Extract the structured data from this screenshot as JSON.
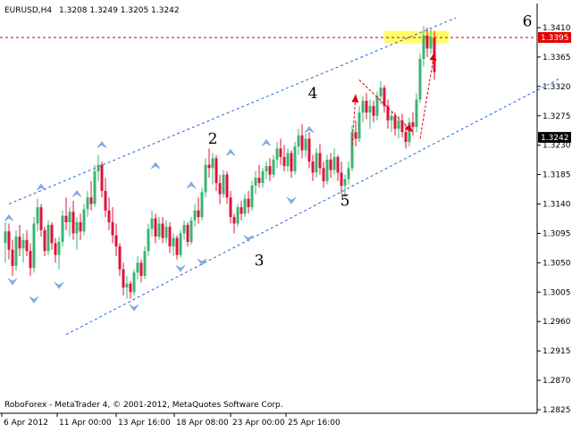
{
  "header": {
    "symbol_timeframe": "EURUSD,H4",
    "ohlc": "1.3208 1.3249 1.3205 1.3242"
  },
  "footer": {
    "copyright": "RoboForex - MetaTrader 4, © 2001-2012, MetaQuotes Software Corp."
  },
  "colors": {
    "background": "#ffffff",
    "bull_candle": "#3cb371",
    "bear_candle": "#dc143c",
    "channel": "#1e64dc",
    "fractal_arrow": "#87aee6",
    "target_zone": "#ffff66",
    "signal_arrow": "#e00000",
    "resistance_line": "#cc0000",
    "price_tag_bg": "#000000",
    "price_tag_alert_bg": "#e00000"
  },
  "chart_data": {
    "type": "candlestick",
    "instrument": "EURUSD",
    "timeframe": "H4",
    "ylim": [
      1.2825,
      1.3425
    ],
    "y_ticks": [
      "1.3410",
      "1.3365",
      "1.3320",
      "1.3275",
      "1.3230",
      "1.3185",
      "1.3140",
      "1.3095",
      "1.3050",
      "1.3005",
      "1.2960",
      "1.2915",
      "1.2870",
      "1.2825"
    ],
    "x_ticks": [
      "6 Apr 2012",
      "11 Apr 00:00",
      "13 Apr 16:00",
      "18 Apr 08:00",
      "23 Apr 00:00",
      "25 Apr 16:00"
    ],
    "price_tags": [
      {
        "label": "1.3395",
        "value": 1.3395,
        "style": "alert"
      },
      {
        "label": "1.3242",
        "value": 1.3242,
        "style": "current"
      }
    ],
    "wave_labels": [
      {
        "text": "2",
        "bar": 58,
        "price": 1.3232
      },
      {
        "text": "3",
        "bar": 71,
        "price": 1.3046
      },
      {
        "text": "4",
        "bar": 86,
        "price": 1.3302
      },
      {
        "text": "5",
        "bar": 95,
        "price": 1.3137
      },
      {
        "text": "6",
        "bar": 146,
        "price": 1.3412
      }
    ],
    "target_zone": {
      "price_top": 1.3405,
      "price_bottom": 1.3386,
      "bar_start": 106,
      "bar_end": 124
    },
    "resistance_level": 1.3395,
    "channel": {
      "upper": [
        {
          "bar": 1,
          "price": 1.314
        },
        {
          "bar": 126,
          "price": 1.3425
        }
      ],
      "lower": [
        {
          "bar": 17,
          "price": 1.294
        },
        {
          "bar": 155,
          "price": 1.3332
        }
      ]
    },
    "signal_arrows": [
      {
        "from": {
          "bar": 97,
          "price": 1.323
        },
        "to": {
          "bar": 98,
          "price": 1.3308
        }
      },
      {
        "from": {
          "bar": 99,
          "price": 1.333
        },
        "to": {
          "bar": 114,
          "price": 1.325
        }
      },
      {
        "from": {
          "bar": 116,
          "price": 1.324
        },
        "to": {
          "bar": 120,
          "price": 1.3372
        }
      }
    ],
    "fractals_up": [
      {
        "bar": 1,
        "price": 1.311
      },
      {
        "bar": 10,
        "price": 1.3157
      },
      {
        "bar": 20,
        "price": 1.3147
      },
      {
        "bar": 27,
        "price": 1.3222
      },
      {
        "bar": 42,
        "price": 1.319
      },
      {
        "bar": 52,
        "price": 1.316
      },
      {
        "bar": 63,
        "price": 1.321
      },
      {
        "bar": 73,
        "price": 1.3225
      },
      {
        "bar": 85,
        "price": 1.3245
      }
    ],
    "fractals_down": [
      {
        "bar": 2,
        "price": 1.303
      },
      {
        "bar": 8,
        "price": 1.3002
      },
      {
        "bar": 15,
        "price": 1.3024
      },
      {
        "bar": 36,
        "price": 1.299
      },
      {
        "bar": 49,
        "price": 1.305
      },
      {
        "bar": 55,
        "price": 1.306
      },
      {
        "bar": 68,
        "price": 1.3096
      },
      {
        "bar": 80,
        "price": 1.3154
      }
    ],
    "candles": [
      {
        "o": 1.308,
        "h": 1.3112,
        "l": 1.305,
        "c": 1.3098
      },
      {
        "o": 1.3098,
        "h": 1.311,
        "l": 1.3055,
        "c": 1.307
      },
      {
        "o": 1.307,
        "h": 1.3085,
        "l": 1.303,
        "c": 1.3045
      },
      {
        "o": 1.3045,
        "h": 1.31,
        "l": 1.3038,
        "c": 1.309
      },
      {
        "o": 1.309,
        "h": 1.3108,
        "l": 1.306,
        "c": 1.3072
      },
      {
        "o": 1.3072,
        "h": 1.3095,
        "l": 1.305,
        "c": 1.3085
      },
      {
        "o": 1.3085,
        "h": 1.31,
        "l": 1.306,
        "c": 1.3068
      },
      {
        "o": 1.3068,
        "h": 1.308,
        "l": 1.303,
        "c": 1.3042
      },
      {
        "o": 1.3042,
        "h": 1.312,
        "l": 1.3035,
        "c": 1.311
      },
      {
        "o": 1.311,
        "h": 1.3148,
        "l": 1.3098,
        "c": 1.3135
      },
      {
        "o": 1.3135,
        "h": 1.314,
        "l": 1.309,
        "c": 1.31
      },
      {
        "o": 1.31,
        "h": 1.3105,
        "l": 1.306,
        "c": 1.3068
      },
      {
        "o": 1.3068,
        "h": 1.3115,
        "l": 1.3062,
        "c": 1.3108
      },
      {
        "o": 1.3108,
        "h": 1.3112,
        "l": 1.307,
        "c": 1.308
      },
      {
        "o": 1.308,
        "h": 1.3088,
        "l": 1.305,
        "c": 1.3062
      },
      {
        "o": 1.3062,
        "h": 1.309,
        "l": 1.304,
        "c": 1.3082
      },
      {
        "o": 1.3082,
        "h": 1.313,
        "l": 1.3075,
        "c": 1.3122
      },
      {
        "o": 1.3122,
        "h": 1.315,
        "l": 1.31,
        "c": 1.3112
      },
      {
        "o": 1.3112,
        "h": 1.3135,
        "l": 1.309,
        "c": 1.3128
      },
      {
        "o": 1.3128,
        "h": 1.3145,
        "l": 1.3085,
        "c": 1.3095
      },
      {
        "o": 1.3095,
        "h": 1.312,
        "l": 1.307,
        "c": 1.3112
      },
      {
        "o": 1.3112,
        "h": 1.3125,
        "l": 1.3085,
        "c": 1.3098
      },
      {
        "o": 1.3098,
        "h": 1.314,
        "l": 1.3092,
        "c": 1.3132
      },
      {
        "o": 1.3132,
        "h": 1.316,
        "l": 1.312,
        "c": 1.315
      },
      {
        "o": 1.315,
        "h": 1.3175,
        "l": 1.313,
        "c": 1.314
      },
      {
        "o": 1.314,
        "h": 1.32,
        "l": 1.3135,
        "c": 1.319
      },
      {
        "o": 1.319,
        "h": 1.3215,
        "l": 1.3175,
        "c": 1.32
      },
      {
        "o": 1.32,
        "h": 1.3205,
        "l": 1.315,
        "c": 1.316
      },
      {
        "o": 1.316,
        "h": 1.318,
        "l": 1.312,
        "c": 1.313
      },
      {
        "o": 1.313,
        "h": 1.315,
        "l": 1.31,
        "c": 1.3112
      },
      {
        "o": 1.3112,
        "h": 1.3135,
        "l": 1.308,
        "c": 1.3092
      },
      {
        "o": 1.3092,
        "h": 1.311,
        "l": 1.306,
        "c": 1.3075
      },
      {
        "o": 1.3075,
        "h": 1.308,
        "l": 1.303,
        "c": 1.304
      },
      {
        "o": 1.304,
        "h": 1.305,
        "l": 1.3,
        "c": 1.3012
      },
      {
        "o": 1.3012,
        "h": 1.303,
        "l": 1.2995,
        "c": 1.3018
      },
      {
        "o": 1.3018,
        "h": 1.3022,
        "l": 1.2995,
        "c": 1.3005
      },
      {
        "o": 1.3005,
        "h": 1.304,
        "l": 1.3,
        "c": 1.3035
      },
      {
        "o": 1.3035,
        "h": 1.306,
        "l": 1.3025,
        "c": 1.305
      },
      {
        "o": 1.305,
        "h": 1.3055,
        "l": 1.302,
        "c": 1.303
      },
      {
        "o": 1.303,
        "h": 1.3075,
        "l": 1.3025,
        "c": 1.3068
      },
      {
        "o": 1.3068,
        "h": 1.311,
        "l": 1.306,
        "c": 1.3102
      },
      {
        "o": 1.3102,
        "h": 1.313,
        "l": 1.309,
        "c": 1.3118
      },
      {
        "o": 1.3118,
        "h": 1.3125,
        "l": 1.308,
        "c": 1.309
      },
      {
        "o": 1.309,
        "h": 1.312,
        "l": 1.3085,
        "c": 1.311
      },
      {
        "o": 1.311,
        "h": 1.312,
        "l": 1.308,
        "c": 1.3088
      },
      {
        "o": 1.3088,
        "h": 1.3115,
        "l": 1.308,
        "c": 1.3105
      },
      {
        "o": 1.3105,
        "h": 1.3112,
        "l": 1.3065,
        "c": 1.3075
      },
      {
        "o": 1.3075,
        "h": 1.3095,
        "l": 1.306,
        "c": 1.3088
      },
      {
        "o": 1.3088,
        "h": 1.3092,
        "l": 1.3055,
        "c": 1.3062
      },
      {
        "o": 1.3062,
        "h": 1.31,
        "l": 1.3058,
        "c": 1.3095
      },
      {
        "o": 1.3095,
        "h": 1.3115,
        "l": 1.3085,
        "c": 1.3108
      },
      {
        "o": 1.3108,
        "h": 1.3112,
        "l": 1.3075,
        "c": 1.3082
      },
      {
        "o": 1.3082,
        "h": 1.312,
        "l": 1.3078,
        "c": 1.3115
      },
      {
        "o": 1.3115,
        "h": 1.314,
        "l": 1.3105,
        "c": 1.313
      },
      {
        "o": 1.313,
        "h": 1.315,
        "l": 1.311,
        "c": 1.312
      },
      {
        "o": 1.312,
        "h": 1.3165,
        "l": 1.3115,
        "c": 1.3158
      },
      {
        "o": 1.3158,
        "h": 1.321,
        "l": 1.315,
        "c": 1.32
      },
      {
        "o": 1.32,
        "h": 1.3225,
        "l": 1.318,
        "c": 1.3195
      },
      {
        "o": 1.3195,
        "h": 1.3218,
        "l": 1.317,
        "c": 1.321
      },
      {
        "o": 1.321,
        "h": 1.3215,
        "l": 1.316,
        "c": 1.3172
      },
      {
        "o": 1.3172,
        "h": 1.3185,
        "l": 1.314,
        "c": 1.3155
      },
      {
        "o": 1.3155,
        "h": 1.3192,
        "l": 1.315,
        "c": 1.3185
      },
      {
        "o": 1.3185,
        "h": 1.319,
        "l": 1.314,
        "c": 1.315
      },
      {
        "o": 1.315,
        "h": 1.316,
        "l": 1.311,
        "c": 1.312
      },
      {
        "o": 1.312,
        "h": 1.3125,
        "l": 1.3095,
        "c": 1.311
      },
      {
        "o": 1.311,
        "h": 1.314,
        "l": 1.3105,
        "c": 1.3135
      },
      {
        "o": 1.3135,
        "h": 1.3145,
        "l": 1.3115,
        "c": 1.3125
      },
      {
        "o": 1.3125,
        "h": 1.3155,
        "l": 1.312,
        "c": 1.3148
      },
      {
        "o": 1.3148,
        "h": 1.316,
        "l": 1.3125,
        "c": 1.3135
      },
      {
        "o": 1.3135,
        "h": 1.3175,
        "l": 1.313,
        "c": 1.3168
      },
      {
        "o": 1.3168,
        "h": 1.319,
        "l": 1.3155,
        "c": 1.318
      },
      {
        "o": 1.318,
        "h": 1.32,
        "l": 1.3165,
        "c": 1.3172
      },
      {
        "o": 1.3172,
        "h": 1.3195,
        "l": 1.3165,
        "c": 1.319
      },
      {
        "o": 1.319,
        "h": 1.3205,
        "l": 1.3178,
        "c": 1.3198
      },
      {
        "o": 1.3198,
        "h": 1.321,
        "l": 1.3175,
        "c": 1.3185
      },
      {
        "o": 1.3185,
        "h": 1.3215,
        "l": 1.318,
        "c": 1.3208
      },
      {
        "o": 1.3208,
        "h": 1.3235,
        "l": 1.3195,
        "c": 1.3225
      },
      {
        "o": 1.3225,
        "h": 1.324,
        "l": 1.32,
        "c": 1.3212
      },
      {
        "o": 1.3212,
        "h": 1.323,
        "l": 1.319,
        "c": 1.3198
      },
      {
        "o": 1.3198,
        "h": 1.3225,
        "l": 1.319,
        "c": 1.3218
      },
      {
        "o": 1.3218,
        "h": 1.3222,
        "l": 1.318,
        "c": 1.319
      },
      {
        "o": 1.319,
        "h": 1.3235,
        "l": 1.3185,
        "c": 1.3228
      },
      {
        "o": 1.3228,
        "h": 1.3255,
        "l": 1.3215,
        "c": 1.3245
      },
      {
        "o": 1.3245,
        "h": 1.3262,
        "l": 1.321,
        "c": 1.3222
      },
      {
        "o": 1.3222,
        "h": 1.3248,
        "l": 1.3212,
        "c": 1.324
      },
      {
        "o": 1.324,
        "h": 1.325,
        "l": 1.3195,
        "c": 1.3205
      },
      {
        "o": 1.3205,
        "h": 1.3215,
        "l": 1.3175,
        "c": 1.3188
      },
      {
        "o": 1.3188,
        "h": 1.3225,
        "l": 1.318,
        "c": 1.3218
      },
      {
        "o": 1.3218,
        "h": 1.3232,
        "l": 1.3185,
        "c": 1.3195
      },
      {
        "o": 1.3195,
        "h": 1.3205,
        "l": 1.3165,
        "c": 1.3175
      },
      {
        "o": 1.3175,
        "h": 1.3215,
        "l": 1.317,
        "c": 1.3208
      },
      {
        "o": 1.3208,
        "h": 1.3218,
        "l": 1.318,
        "c": 1.3192
      },
      {
        "o": 1.3192,
        "h": 1.3225,
        "l": 1.3185,
        "c": 1.3212
      },
      {
        "o": 1.3212,
        "h": 1.3215,
        "l": 1.3175,
        "c": 1.3188
      },
      {
        "o": 1.3188,
        "h": 1.3205,
        "l": 1.3155,
        "c": 1.3168
      },
      {
        "o": 1.3168,
        "h": 1.3185,
        "l": 1.315,
        "c": 1.3178
      },
      {
        "o": 1.3178,
        "h": 1.3205,
        "l": 1.317,
        "c": 1.3195
      },
      {
        "o": 1.3195,
        "h": 1.326,
        "l": 1.319,
        "c": 1.325
      },
      {
        "o": 1.325,
        "h": 1.3268,
        "l": 1.3228,
        "c": 1.324
      },
      {
        "o": 1.324,
        "h": 1.329,
        "l": 1.3235,
        "c": 1.328
      },
      {
        "o": 1.328,
        "h": 1.3305,
        "l": 1.3265,
        "c": 1.3298
      },
      {
        "o": 1.3298,
        "h": 1.331,
        "l": 1.327,
        "c": 1.328
      },
      {
        "o": 1.328,
        "h": 1.33,
        "l": 1.3255,
        "c": 1.329
      },
      {
        "o": 1.329,
        "h": 1.3298,
        "l": 1.3265,
        "c": 1.3275
      },
      {
        "o": 1.3275,
        "h": 1.3312,
        "l": 1.3268,
        "c": 1.3305
      },
      {
        "o": 1.3305,
        "h": 1.3328,
        "l": 1.3292,
        "c": 1.3318
      },
      {
        "o": 1.3318,
        "h": 1.3322,
        "l": 1.328,
        "c": 1.329
      },
      {
        "o": 1.329,
        "h": 1.33,
        "l": 1.3255,
        "c": 1.3268
      },
      {
        "o": 1.3268,
        "h": 1.3282,
        "l": 1.325,
        "c": 1.3275
      },
      {
        "o": 1.3275,
        "h": 1.328,
        "l": 1.3245,
        "c": 1.3255
      },
      {
        "o": 1.3255,
        "h": 1.3275,
        "l": 1.324,
        "c": 1.3268
      },
      {
        "o": 1.3268,
        "h": 1.3278,
        "l": 1.3242,
        "c": 1.325
      },
      {
        "o": 1.325,
        "h": 1.3262,
        "l": 1.3225,
        "c": 1.3235
      },
      {
        "o": 1.3235,
        "h": 1.3272,
        "l": 1.3228,
        "c": 1.3265
      },
      {
        "o": 1.3265,
        "h": 1.328,
        "l": 1.3245,
        "c": 1.3258
      },
      {
        "o": 1.3258,
        "h": 1.331,
        "l": 1.325,
        "c": 1.33
      },
      {
        "o": 1.33,
        "h": 1.337,
        "l": 1.3295,
        "c": 1.3362
      },
      {
        "o": 1.3362,
        "h": 1.3412,
        "l": 1.335,
        "c": 1.3398
      },
      {
        "o": 1.3398,
        "h": 1.341,
        "l": 1.3365,
        "c": 1.3378
      },
      {
        "o": 1.3378,
        "h": 1.3408,
        "l": 1.337,
        "c": 1.3395
      },
      {
        "o": 1.3395,
        "h": 1.3405,
        "l": 1.333,
        "c": 1.3342
      }
    ]
  }
}
